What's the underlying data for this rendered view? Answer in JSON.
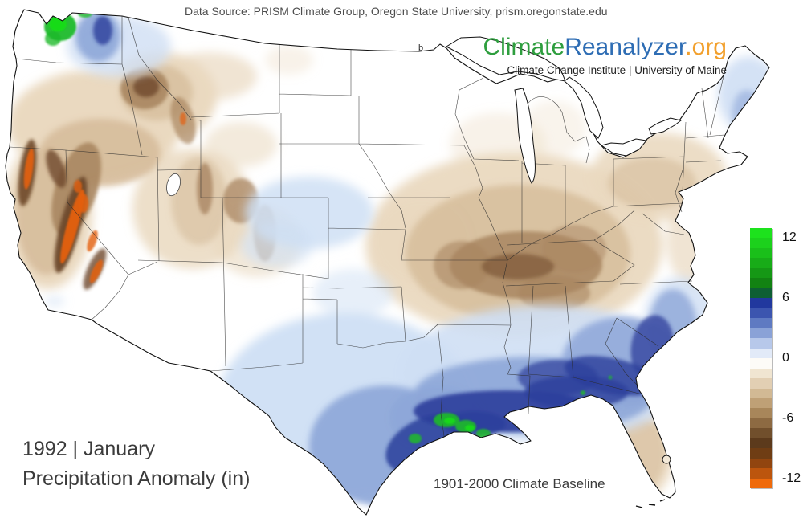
{
  "header": {
    "data_source": "Data Source: PRISM Climate Group, Oregon State University, prism.oregonstate.edu"
  },
  "branding": {
    "logo_climate": "Climate",
    "logo_reanalyzer": "Reanalyzer",
    "logo_org": ".org",
    "colors": {
      "climate": "#2e9e3e",
      "reanalyzer": "#2e6db4",
      "org": "#f2a02d"
    },
    "institute": "Climate Change Institute | University of Maine"
  },
  "title": {
    "line1": "1992 | January",
    "line2": "Precipitation Anomaly (in)"
  },
  "baseline_note": "1901-2000 Climate Baseline",
  "map": {
    "region": "Contiguous United States",
    "variable": "Precipitation Anomaly",
    "units": "in",
    "annotation": "b",
    "palette": {
      "strong_positive_green": "#1dd21d",
      "positive_navy": "#2c3f9b",
      "moderate_positive_blue": "#8da6d8",
      "weak_positive_blue": "#cfdff4",
      "near_zero_white": "#ffffff",
      "weak_negative_tan": "#ead9c0",
      "moderate_negative_brown": "#a98661",
      "strong_negative_dark_brown": "#6e482a",
      "strong_negative_orange": "#e4600f"
    }
  },
  "colorbar": {
    "ticks": [
      {
        "value": 12,
        "label": "12"
      },
      {
        "value": 6,
        "label": "6"
      },
      {
        "value": 0,
        "label": "0"
      },
      {
        "value": -6,
        "label": "-6"
      },
      {
        "value": -12,
        "label": "-12"
      }
    ],
    "top_value": 13,
    "bottom_value": -13,
    "cells": [
      "#1de21d",
      "#1cd11c",
      "#1abf1a",
      "#18ac18",
      "#159815",
      "#128212",
      "#0e5f33",
      "#21389e",
      "#3c55af",
      "#5f7ac2",
      "#8aa2d7",
      "#b7c8ea",
      "#e2eaf8",
      "#fdfbf7",
      "#f0e5d1",
      "#e2cfb3",
      "#d2b994",
      "#bfa076",
      "#a8865a",
      "#8d6a42",
      "#714f2c",
      "#5c3a1c",
      "#6f3d14",
      "#91450f",
      "#bc550d",
      "#ef6a0b"
    ]
  }
}
